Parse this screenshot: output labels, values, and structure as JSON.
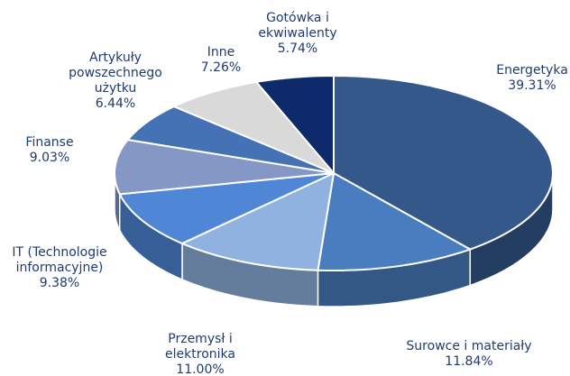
{
  "chart_data": {
    "type": "pie",
    "categories": [
      "Energetyka",
      "Surowce i materiały",
      "Przemysł i elektronika",
      "IT (Technologie informacyjne)",
      "Finanse",
      "Artykuły powszechnego użytku",
      "Inne",
      "Gotówka i ekwiwalenty"
    ],
    "values": [
      39.31,
      11.84,
      11.0,
      9.38,
      9.03,
      6.44,
      7.26,
      5.74
    ],
    "value_labels": [
      "39.31%",
      "11.84%",
      "11.00%",
      "9.38%",
      "9.03%",
      "6.44%",
      "7.26%",
      "5.74%"
    ],
    "colors": [
      "#34588a",
      "#4a7dbf",
      "#8fb2e0",
      "#4f86d6",
      "#8497c5",
      "#4472b4",
      "#d9d9d9",
      "#0d2a6b"
    ]
  }
}
